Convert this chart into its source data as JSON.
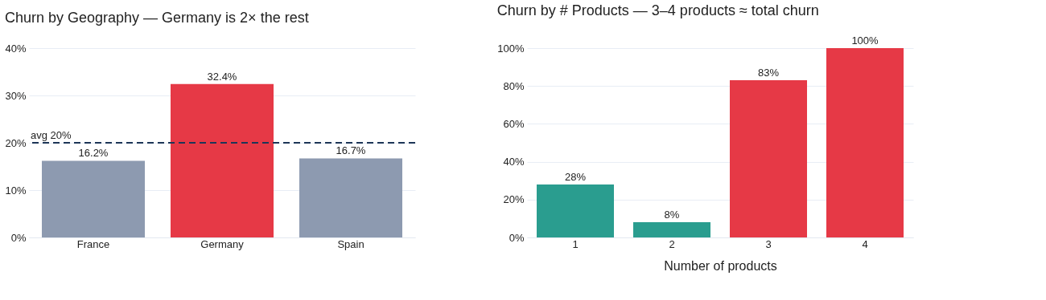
{
  "chart_data": [
    {
      "type": "bar",
      "title": "Churn by Geography — Germany is 2× the rest",
      "categories": [
        "France",
        "Germany",
        "Spain"
      ],
      "values": [
        16.2,
        32.4,
        16.7
      ],
      "colors": [
        "#8d9ab0",
        "#e63946",
        "#8d9ab0"
      ],
      "value_labels": [
        "16.2%",
        "32.4%",
        "16.7%"
      ],
      "ylim": [
        0,
        40
      ],
      "yticks": [
        {
          "value": 0,
          "label": "0%"
        },
        {
          "value": 10,
          "label": "10%"
        },
        {
          "value": 20,
          "label": "20%"
        },
        {
          "value": 30,
          "label": "30%"
        },
        {
          "value": 40,
          "label": "40%"
        }
      ],
      "ref_lines": [
        {
          "axis": "y",
          "value": 20,
          "label": "avg 20%",
          "color": "#1d3557",
          "line_style": "dashed"
        }
      ],
      "grid": "y"
    },
    {
      "type": "bar",
      "title": "Churn by # Products — 3–4 products ≈ total churn",
      "categories": [
        "1",
        "2",
        "3",
        "4"
      ],
      "values": [
        28,
        8,
        83,
        100
      ],
      "colors": [
        "#2a9d8f",
        "#2a9d8f",
        "#e63946",
        "#e63946"
      ],
      "value_labels": [
        "28%",
        "8%",
        "83%",
        "100%"
      ],
      "xlabel": "Number of products",
      "ylim": [
        0,
        100
      ],
      "yticks": [
        {
          "value": 0,
          "label": "0%"
        },
        {
          "value": 20,
          "label": "20%"
        },
        {
          "value": 40,
          "label": "40%"
        },
        {
          "value": 60,
          "label": "60%"
        },
        {
          "value": 80,
          "label": "80%"
        },
        {
          "value": 100,
          "label": "100%"
        }
      ],
      "grid": "y"
    }
  ]
}
